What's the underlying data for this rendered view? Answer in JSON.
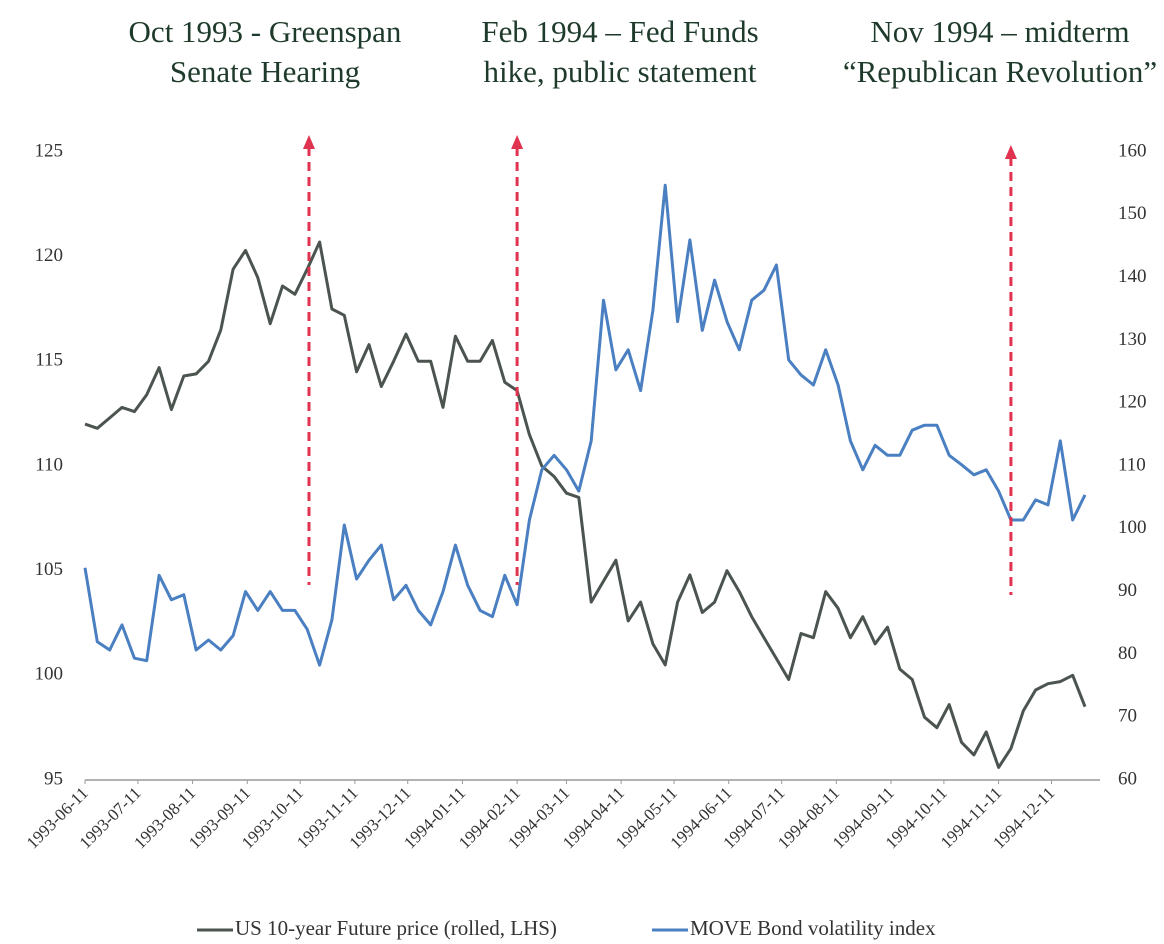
{
  "chart_data": {
    "type": "line",
    "annotations": [
      {
        "lines": [
          "Oct 1993 - Greenspan",
          "Senate Hearing"
        ],
        "x": "1993-10-16"
      },
      {
        "lines": [
          "Feb 1994 – Fed Funds",
          "hike, public statement"
        ],
        "x": "1994-02-11"
      },
      {
        "lines": [
          "Nov 1994 – midterm",
          "“Republican Revolution”"
        ],
        "x": "1994-11-18"
      }
    ],
    "x": [
      "1993-06-11",
      "1993-06-18",
      "1993-06-25",
      "1993-07-02",
      "1993-07-09",
      "1993-07-16",
      "1993-07-23",
      "1993-07-30",
      "1993-08-06",
      "1993-08-13",
      "1993-08-20",
      "1993-08-27",
      "1993-09-03",
      "1993-09-10",
      "1993-09-17",
      "1993-09-24",
      "1993-10-01",
      "1993-10-08",
      "1993-10-15",
      "1993-10-22",
      "1993-10-29",
      "1993-11-05",
      "1993-11-12",
      "1993-11-19",
      "1993-11-26",
      "1993-12-03",
      "1993-12-10",
      "1993-12-17",
      "1993-12-24",
      "1993-12-31",
      "1994-01-07",
      "1994-01-14",
      "1994-01-21",
      "1994-01-28",
      "1994-02-04",
      "1994-02-11",
      "1994-02-18",
      "1994-02-25",
      "1994-03-04",
      "1994-03-11",
      "1994-03-18",
      "1994-03-25",
      "1994-04-01",
      "1994-04-08",
      "1994-04-15",
      "1994-04-22",
      "1994-04-29",
      "1994-05-06",
      "1994-05-13",
      "1994-05-20",
      "1994-05-27",
      "1994-06-03",
      "1994-06-10",
      "1994-06-17",
      "1994-06-24",
      "1994-07-01",
      "1994-07-08",
      "1994-07-15",
      "1994-07-22",
      "1994-07-29",
      "1994-08-05",
      "1994-08-12",
      "1994-08-19",
      "1994-08-26",
      "1994-09-02",
      "1994-09-09",
      "1994-09-16",
      "1994-09-23",
      "1994-09-30",
      "1994-10-07",
      "1994-10-14",
      "1994-10-21",
      "1994-10-28",
      "1994-11-04",
      "1994-11-11",
      "1994-11-18",
      "1994-11-25",
      "1994-12-02",
      "1994-12-09",
      "1994-12-16",
      "1994-12-23",
      "1994-12-30"
    ],
    "series": [
      {
        "name": "US 10-year Future price (rolled, LHS)",
        "color": "#4b544e",
        "axis": "y",
        "values": [
          112,
          111.8,
          112.3,
          112.8,
          112.6,
          113.4,
          114.7,
          112.7,
          114.3,
          114.4,
          115,
          116.5,
          119.4,
          120.3,
          119,
          116.8,
          118.6,
          118.2,
          119.4,
          120.7,
          117.5,
          117.2,
          114.5,
          115.8,
          113.8,
          115,
          116.3,
          115,
          115,
          112.8,
          116.2,
          115,
          115,
          116,
          114,
          113.6,
          111.5,
          110,
          109.5,
          108.7,
          108.5,
          103.5,
          104.5,
          105.5,
          102.6,
          103.5,
          101.5,
          100.5,
          103.5,
          104.8,
          103,
          103.5,
          105,
          104,
          102.8,
          101.8,
          100.8,
          99.8,
          102,
          101.8,
          104,
          103.2,
          101.8,
          102.8,
          101.5,
          102.3,
          100.3,
          99.8,
          98,
          97.5,
          98.6,
          96.8,
          96.2,
          97.3,
          95.6,
          96.5,
          98.3,
          99.3,
          99.6,
          99.7,
          100,
          98.5
        ]
      },
      {
        "name": "MOVE Bond volatility index",
        "color": "#4a7fc1",
        "axis": "y2",
        "values": [
          93.8,
          82,
          80.7,
          84.7,
          79.4,
          79,
          92.6,
          88.7,
          89.5,
          80.7,
          82.3,
          80.7,
          83,
          90,
          87,
          90,
          87,
          87,
          84,
          78.3,
          85.5,
          100.6,
          92,
          95,
          97.4,
          88.7,
          91,
          87,
          84.7,
          90,
          97.4,
          91,
          87,
          86,
          92.6,
          87.9,
          101.4,
          109.4,
          111.7,
          109.4,
          106,
          114,
          136.4,
          125.3,
          128.5,
          122,
          134.8,
          154.7,
          133,
          146,
          131.6,
          139.6,
          133,
          128.5,
          136.4,
          138,
          142,
          126.9,
          124.5,
          122.9,
          128.5,
          122.9,
          114,
          109.4,
          113.3,
          111.7,
          111.7,
          115.7,
          116.5,
          116.5,
          111.7,
          110.2,
          108.6,
          109.4,
          106,
          101.4,
          101.4,
          104.6,
          103.8,
          114,
          101.4,
          105.4
        ]
      }
    ],
    "xlim": [
      "1993-06-11",
      "1994-12-30"
    ],
    "xticks": [
      "1993-06-11",
      "1993-07-11",
      "1993-08-11",
      "1993-09-11",
      "1993-10-11",
      "1993-11-11",
      "1993-12-11",
      "1994-01-11",
      "1994-02-11",
      "1994-03-11",
      "1994-04-11",
      "1994-05-11",
      "1994-06-11",
      "1994-07-11",
      "1994-08-11",
      "1994-09-11",
      "1994-10-11",
      "1994-11-11",
      "1994-12-11"
    ],
    "ylim": [
      95,
      125
    ],
    "yticks": [
      95,
      100,
      105,
      110,
      115,
      120,
      125
    ],
    "y2lim": [
      60,
      160
    ],
    "y2ticks": [
      60,
      70,
      80,
      90,
      100,
      110,
      120,
      130,
      140,
      150,
      160
    ],
    "arrow_color": "#e0334f",
    "legend": "bottom"
  }
}
